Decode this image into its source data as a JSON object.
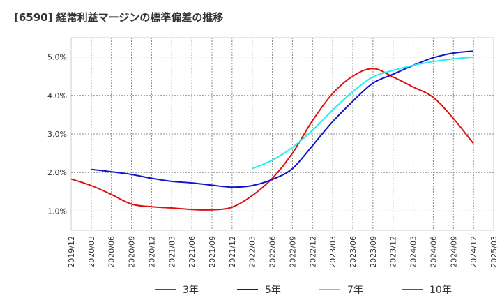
{
  "chart_data": {
    "type": "line",
    "title": "[6590]  経常利益マージンの標準偏差の推移",
    "x": [
      "2019/12",
      "2020/03",
      "2020/06",
      "2020/09",
      "2020/12",
      "2021/03",
      "2021/06",
      "2021/09",
      "2021/12",
      "2022/03",
      "2022/06",
      "2022/09",
      "2022/12",
      "2023/03",
      "2023/06",
      "2023/09",
      "2023/12",
      "2024/03",
      "2024/06",
      "2024/09",
      "2024/12",
      "2025/03"
    ],
    "y_ticks": [
      "1.0%",
      "2.0%",
      "3.0%",
      "4.0%",
      "5.0%"
    ],
    "ylim": [
      0.5,
      5.5
    ],
    "grid": true,
    "legend_position": "bottom",
    "series": [
      {
        "name": "3年",
        "color": "#dd1111",
        "values": [
          1.83,
          1.66,
          1.43,
          1.18,
          1.11,
          1.08,
          1.04,
          1.03,
          1.1,
          1.4,
          1.85,
          2.5,
          3.35,
          4.05,
          4.5,
          4.7,
          4.48,
          4.22,
          3.95,
          3.4,
          2.75,
          null
        ]
      },
      {
        "name": "5年",
        "color": "#1111cc",
        "values": [
          null,
          2.08,
          2.02,
          1.95,
          1.85,
          1.77,
          1.73,
          1.67,
          1.62,
          1.66,
          1.82,
          2.1,
          2.7,
          3.32,
          3.85,
          4.32,
          4.55,
          4.78,
          4.98,
          5.1,
          5.15,
          null
        ]
      },
      {
        "name": "7年",
        "color": "#22eeee",
        "values": [
          null,
          null,
          null,
          null,
          null,
          null,
          null,
          null,
          null,
          2.1,
          2.32,
          2.65,
          3.1,
          3.62,
          4.1,
          4.48,
          4.65,
          4.78,
          4.88,
          4.95,
          5.0,
          null
        ]
      },
      {
        "name": "10年",
        "color": "#118811",
        "values": [
          null,
          null,
          null,
          null,
          null,
          null,
          null,
          null,
          null,
          null,
          null,
          null,
          null,
          null,
          null,
          null,
          null,
          null,
          null,
          null,
          null,
          null
        ]
      }
    ]
  }
}
